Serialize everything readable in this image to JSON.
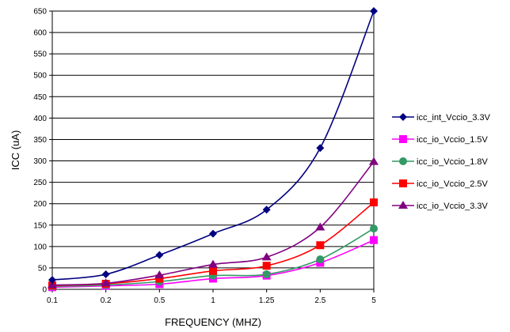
{
  "chart_data": {
    "type": "line",
    "title": "",
    "xlabel": "FREQUENCY (MHZ)",
    "ylabel": "ICC (uA)",
    "categories": [
      "0.1",
      "0.2",
      "0.5",
      "1",
      "1.25",
      "2.5",
      "5"
    ],
    "ylim": [
      0,
      650
    ],
    "yticks": [
      0,
      50,
      100,
      150,
      200,
      250,
      300,
      350,
      400,
      450,
      500,
      550,
      600,
      650
    ],
    "grid": true,
    "legend_position": "right",
    "series": [
      {
        "name": "icc_int_Vccio_3.3V",
        "color": "#000080",
        "marker": "diamond",
        "values": [
          22,
          35,
          80,
          130,
          186,
          330,
          650
        ]
      },
      {
        "name": "icc_io_Vccio_1.5V",
        "color": "#ff00ff",
        "marker": "square",
        "values": [
          5,
          8,
          12,
          25,
          32,
          62,
          115
        ]
      },
      {
        "name": "icc_io_Vccio_1.8V",
        "color": "#339966",
        "marker": "circle",
        "values": [
          7,
          10,
          18,
          32,
          35,
          70,
          142
        ]
      },
      {
        "name": "icc_io_Vccio_2.5V",
        "color": "#ff0000",
        "marker": "square",
        "values": [
          9,
          13,
          25,
          43,
          55,
          103,
          203
        ]
      },
      {
        "name": "icc_io_Vccio_3.3V",
        "color": "#800080",
        "marker": "triangle",
        "values": [
          10,
          14,
          33,
          58,
          75,
          145,
          298
        ]
      }
    ]
  }
}
